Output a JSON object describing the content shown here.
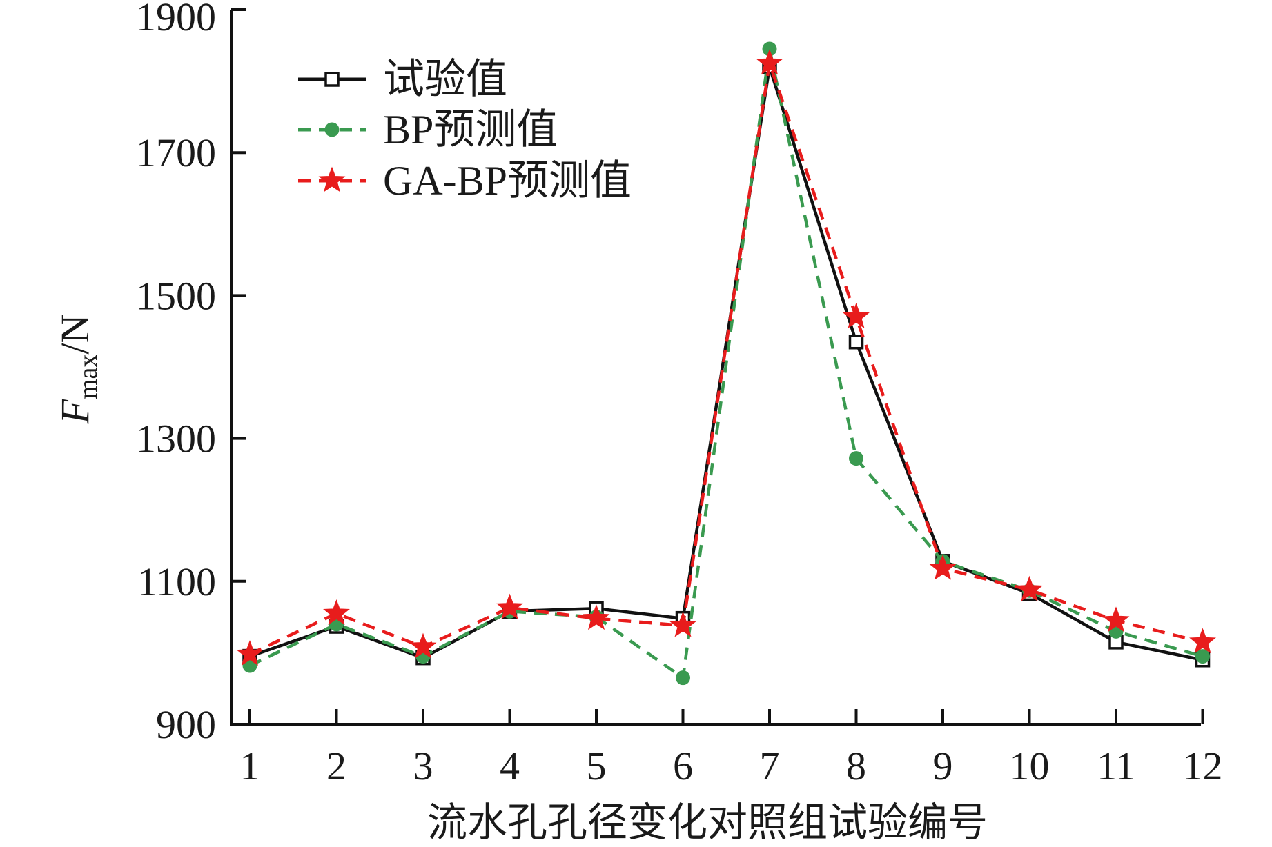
{
  "chart_data": {
    "type": "line",
    "xlabel": "流水孔孔径变化对照组试验编号",
    "ylabel_main": "F",
    "ylabel_sub": "max",
    "ylabel_unit": "/N",
    "ylim": [
      900,
      1900
    ],
    "yticks": [
      "900",
      "1100",
      "1300",
      "1500",
      "1700",
      "1900"
    ],
    "categories": [
      "1",
      "2",
      "3",
      "4",
      "5",
      "6",
      "7",
      "8",
      "9",
      "10",
      "11",
      "12"
    ],
    "legend_position": "top-left",
    "grid": false,
    "series": [
      {
        "name": "试验值",
        "color": "#111111",
        "line_style": "solid",
        "marker": "open-square",
        "values": [
          995,
          1037,
          993,
          1058,
          1062,
          1048,
          1820,
          1435,
          1128,
          1083,
          1015,
          990
        ]
      },
      {
        "name": "BP预测值",
        "color": "#3a9a50",
        "line_style": "dashed",
        "marker": "filled-circle",
        "values": [
          982,
          1040,
          995,
          1058,
          1050,
          965,
          1845,
          1272,
          1128,
          1087,
          1030,
          995
        ]
      },
      {
        "name": "GA-BP预测值",
        "color": "#e81c1c",
        "line_style": "dashed",
        "marker": "star",
        "values": [
          998,
          1055,
          1008,
          1063,
          1048,
          1038,
          1825,
          1470,
          1118,
          1088,
          1045,
          1015
        ]
      }
    ]
  }
}
